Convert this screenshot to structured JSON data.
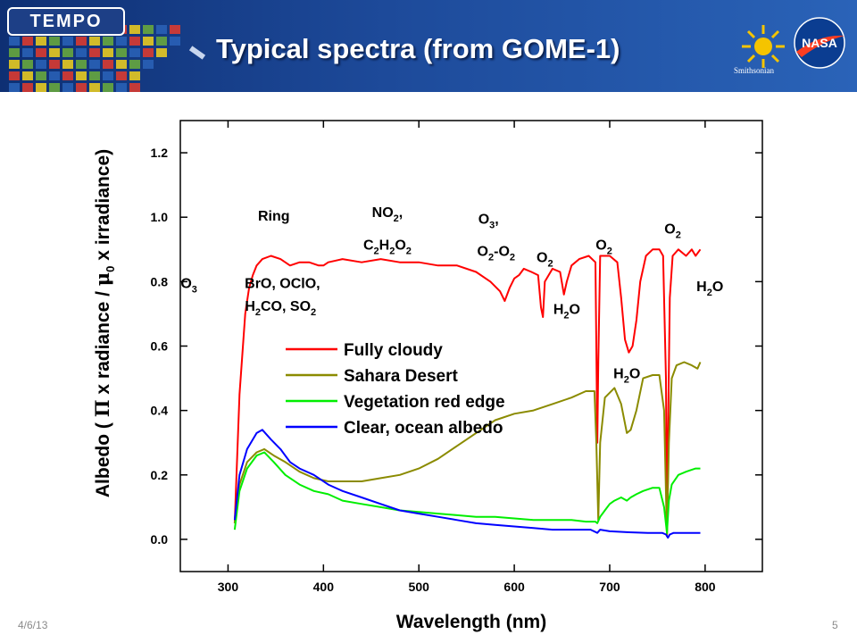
{
  "header": {
    "logo_text": "TEMPO",
    "title": "Typical spectra (from GOME-1)",
    "smithsonian_text": "Smithsonian",
    "nasa_text": "NASA"
  },
  "footer": {
    "date": "4/6/13",
    "page_number": "5"
  },
  "chart_data": {
    "type": "line",
    "xlabel": "Wavelength (nm)",
    "ylabel_parts": [
      "Albedo ( ",
      "Π",
      " x radiance / ",
      "μ",
      "0",
      " x irradiance)"
    ],
    "xlim": [
      250,
      860
    ],
    "ylim": [
      -0.1,
      1.3
    ],
    "xticks": [
      300,
      400,
      500,
      600,
      700,
      800
    ],
    "yticks": [
      0.0,
      0.2,
      0.4,
      0.6,
      0.8,
      1.0,
      1.2
    ],
    "legend_position": "center",
    "series": [
      {
        "name": "Fully cloudy",
        "color": "#ff0000",
        "x": [
          307,
          312,
          318,
          322,
          326,
          330,
          336,
          345,
          355,
          365,
          375,
          385,
          395,
          400,
          405,
          420,
          440,
          460,
          480,
          500,
          520,
          540,
          560,
          575,
          585,
          590,
          595,
          600,
          605,
          610,
          618,
          625,
          628,
          630,
          632,
          640,
          648,
          652,
          655,
          660,
          668,
          678,
          685,
          686,
          687,
          688,
          690,
          700,
          708,
          712,
          716,
          720,
          724,
          728,
          732,
          738,
          745,
          752,
          756,
          759,
          760,
          761,
          763,
          766,
          772,
          780,
          786,
          790,
          795
        ],
        "y": [
          0.05,
          0.45,
          0.7,
          0.78,
          0.82,
          0.85,
          0.87,
          0.88,
          0.87,
          0.85,
          0.86,
          0.86,
          0.85,
          0.85,
          0.86,
          0.87,
          0.86,
          0.87,
          0.86,
          0.86,
          0.85,
          0.85,
          0.83,
          0.8,
          0.77,
          0.74,
          0.78,
          0.81,
          0.82,
          0.84,
          0.83,
          0.82,
          0.72,
          0.69,
          0.8,
          0.84,
          0.83,
          0.76,
          0.8,
          0.85,
          0.87,
          0.88,
          0.86,
          0.6,
          0.3,
          0.55,
          0.88,
          0.88,
          0.86,
          0.75,
          0.62,
          0.58,
          0.6,
          0.68,
          0.8,
          0.88,
          0.9,
          0.9,
          0.88,
          0.5,
          0.01,
          0.3,
          0.75,
          0.88,
          0.9,
          0.88,
          0.9,
          0.88,
          0.9
        ]
      },
      {
        "name": "Sahara Desert",
        "color": "#8b8b00",
        "x": [
          307,
          312,
          320,
          330,
          338,
          348,
          360,
          375,
          390,
          405,
          420,
          440,
          460,
          480,
          500,
          520,
          540,
          560,
          580,
          600,
          620,
          640,
          660,
          675,
          684,
          686,
          688,
          690,
          695,
          705,
          712,
          718,
          722,
          728,
          735,
          745,
          752,
          757,
          760,
          762,
          765,
          770,
          778,
          786,
          792,
          795
        ],
        "y": [
          0.05,
          0.17,
          0.24,
          0.27,
          0.28,
          0.26,
          0.24,
          0.21,
          0.19,
          0.18,
          0.18,
          0.18,
          0.19,
          0.2,
          0.22,
          0.25,
          0.29,
          0.33,
          0.37,
          0.39,
          0.4,
          0.42,
          0.44,
          0.46,
          0.46,
          0.3,
          0.06,
          0.3,
          0.44,
          0.47,
          0.42,
          0.33,
          0.34,
          0.4,
          0.5,
          0.51,
          0.51,
          0.4,
          0.01,
          0.3,
          0.5,
          0.54,
          0.55,
          0.54,
          0.53,
          0.55
        ]
      },
      {
        "name": "Vegetation red edge",
        "color": "#00ee00",
        "x": [
          307,
          312,
          320,
          330,
          338,
          348,
          360,
          375,
          390,
          405,
          420,
          440,
          460,
          480,
          500,
          520,
          540,
          560,
          580,
          600,
          620,
          640,
          660,
          675,
          685,
          687,
          690,
          695,
          700,
          705,
          712,
          718,
          722,
          728,
          735,
          745,
          752,
          757,
          760,
          762,
          765,
          772,
          780,
          790,
          795
        ],
        "y": [
          0.03,
          0.15,
          0.22,
          0.26,
          0.27,
          0.24,
          0.2,
          0.17,
          0.15,
          0.14,
          0.12,
          0.11,
          0.1,
          0.09,
          0.085,
          0.08,
          0.075,
          0.07,
          0.07,
          0.065,
          0.06,
          0.06,
          0.06,
          0.055,
          0.055,
          0.05,
          0.07,
          0.09,
          0.11,
          0.12,
          0.13,
          0.12,
          0.13,
          0.14,
          0.15,
          0.16,
          0.16,
          0.1,
          0.02,
          0.12,
          0.17,
          0.2,
          0.21,
          0.22,
          0.22
        ]
      },
      {
        "name": "Clear, ocean albedo",
        "color": "#0000ff",
        "x": [
          307,
          312,
          320,
          330,
          336,
          345,
          355,
          365,
          375,
          390,
          405,
          420,
          440,
          460,
          480,
          500,
          520,
          540,
          560,
          580,
          600,
          620,
          640,
          660,
          680,
          687,
          690,
          700,
          720,
          740,
          755,
          759,
          761,
          763,
          767,
          780,
          795
        ],
        "y": [
          0.06,
          0.2,
          0.28,
          0.33,
          0.34,
          0.31,
          0.28,
          0.24,
          0.22,
          0.2,
          0.17,
          0.15,
          0.13,
          0.11,
          0.09,
          0.08,
          0.07,
          0.06,
          0.05,
          0.045,
          0.04,
          0.035,
          0.03,
          0.03,
          0.03,
          0.02,
          0.03,
          0.025,
          0.022,
          0.02,
          0.02,
          0.015,
          0.005,
          0.015,
          0.02,
          0.02,
          0.02
        ]
      }
    ],
    "annotations": [
      {
        "text": "O_3",
        "x": 259,
        "y": 0.78
      },
      {
        "text": "Ring",
        "x": 348,
        "y": 0.99
      },
      {
        "text": "BrO, OClO,",
        "x": 357,
        "y": 0.78
      },
      {
        "text": "H_2CO, SO_2",
        "x": 355,
        "y": 0.71
      },
      {
        "text": "NO_2,",
        "x": 467,
        "y": 1.0
      },
      {
        "text": "C_2H_2O_2",
        "x": 467,
        "y": 0.9
      },
      {
        "text": "O_3,",
        "x": 573,
        "y": 0.98
      },
      {
        "text": "O_2-O_2",
        "x": 581,
        "y": 0.88
      },
      {
        "text": "O_2",
        "x": 632,
        "y": 0.86
      },
      {
        "text": "H_2O",
        "x": 655,
        "y": 0.7
      },
      {
        "text": "O_2",
        "x": 694,
        "y": 0.9
      },
      {
        "text": "H_2O",
        "x": 718,
        "y": 0.5
      },
      {
        "text": "O_2",
        "x": 766,
        "y": 0.95
      },
      {
        "text": "H_2O",
        "x": 805,
        "y": 0.77
      }
    ]
  }
}
